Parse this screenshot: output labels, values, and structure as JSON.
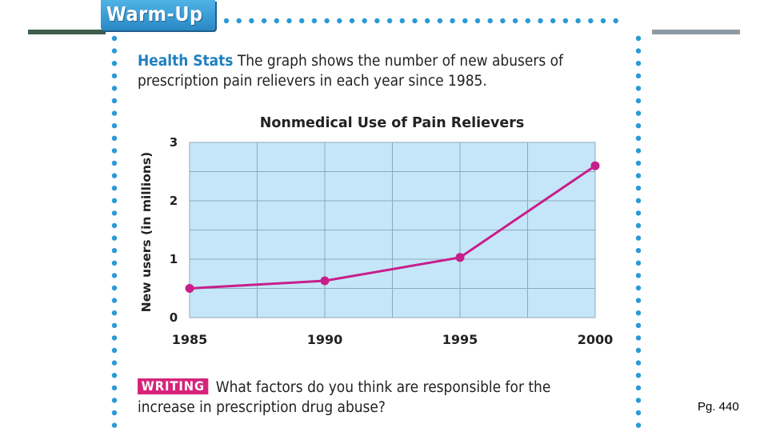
{
  "warmup": {
    "label": "Warm-Up"
  },
  "intro": {
    "lead": "Health Stats",
    "text": "The graph shows the number of new abusers of prescription pain relievers in each year since 1985."
  },
  "writing": {
    "badge": "WRITING",
    "text": "What factors do you think are responsible for the increase in prescription drug abuse?"
  },
  "page_number": "Pg. 440",
  "colors": {
    "accent": "#1f7fc1",
    "plot_bg": "#c5e6f8",
    "line": "#c81e8a",
    "dots": "#2a9ad6",
    "writing_badge": "#d6247b"
  },
  "chart_data": {
    "type": "line",
    "title": "Nonmedical Use of Pain Relievers",
    "xlabel": "",
    "ylabel": "New users (in millions)",
    "x": [
      1985,
      1990,
      1995,
      2000
    ],
    "x_tick_labels": [
      "1985",
      "1990",
      "1995",
      "2000"
    ],
    "y_tick_labels": [
      "0",
      "1",
      "2",
      "3"
    ],
    "y_ticks": [
      0,
      1,
      2,
      3
    ],
    "xlim": [
      1985,
      2000
    ],
    "ylim": [
      0,
      3
    ],
    "grid": true,
    "series": [
      {
        "name": "New users",
        "values": [
          0.5,
          0.63,
          1.03,
          2.6
        ]
      }
    ]
  }
}
